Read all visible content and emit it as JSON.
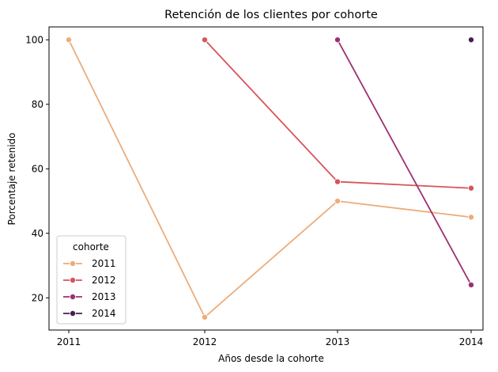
{
  "chart_data": {
    "type": "line",
    "title": "Retención de los clientes por cohorte",
    "xlabel": "Años desde la cohorte",
    "ylabel": "Porcentaje retenido",
    "x": [
      "2011",
      "2012",
      "2013",
      "2014"
    ],
    "xticks": [
      "2011",
      "2012",
      "2013",
      "2014"
    ],
    "yticks": [
      20,
      40,
      60,
      80,
      100
    ],
    "ylim": [
      10,
      104
    ],
    "grid": false,
    "legend": {
      "title": "cohorte",
      "placement": "lower-left"
    },
    "series": [
      {
        "name": "2011",
        "color": "#edac7a",
        "values": [
          100,
          14,
          50,
          45
        ]
      },
      {
        "name": "2012",
        "color": "#d7545b",
        "values": [
          null,
          100,
          56,
          54
        ]
      },
      {
        "name": "2013",
        "color": "#9c3070",
        "values": [
          null,
          null,
          100,
          24
        ]
      },
      {
        "name": "2014",
        "color": "#461e57",
        "values": [
          null,
          null,
          null,
          100
        ]
      }
    ]
  }
}
